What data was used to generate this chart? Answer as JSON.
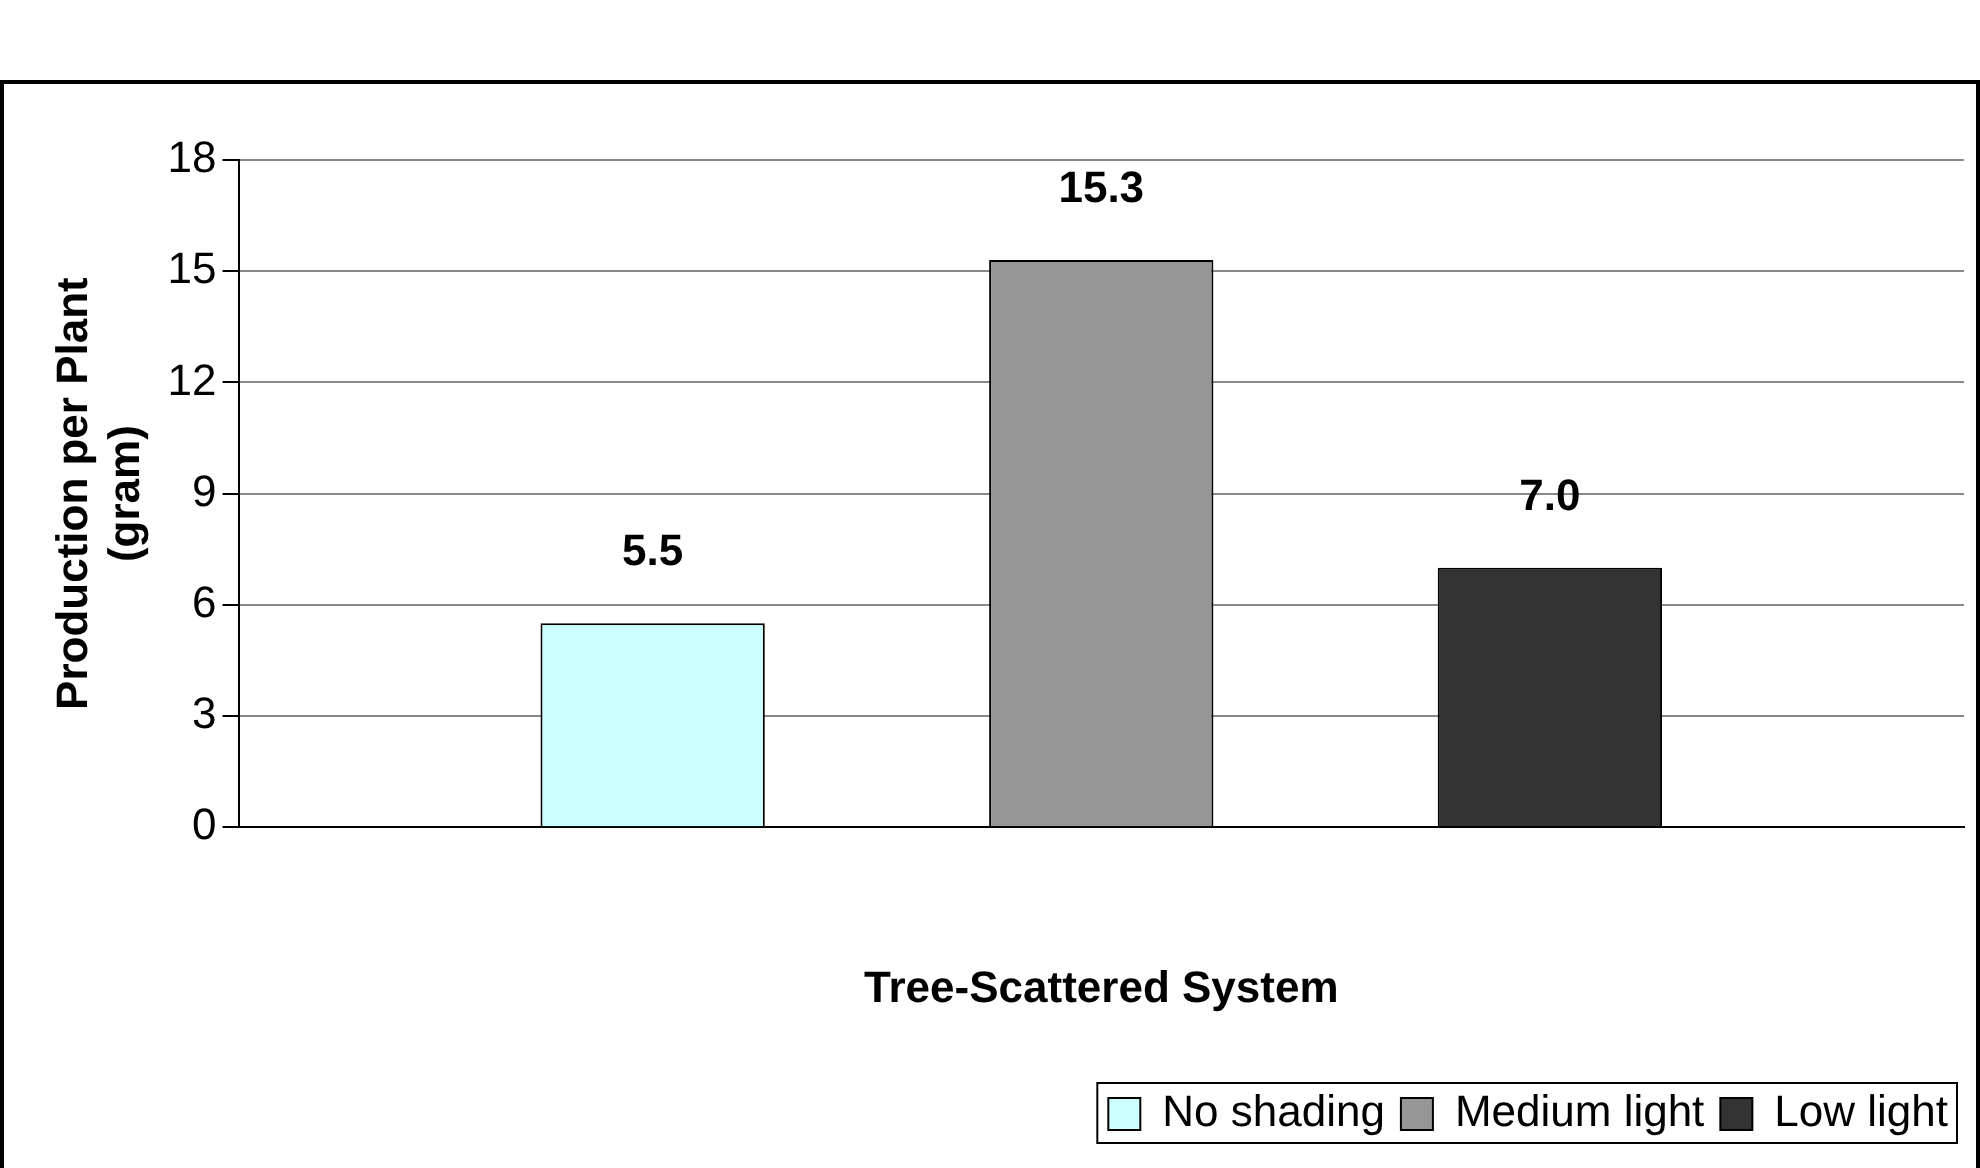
{
  "chart_data": {
    "type": "bar",
    "xlabel": "Tree-Scattered System",
    "ylabel": "Production per Plant\n(gram)",
    "categories": [
      null
    ],
    "series": [
      {
        "name": "No shading",
        "color": "#ccffff",
        "values": [
          5.5
        ],
        "value_labels": [
          "5.5"
        ]
      },
      {
        "name": "Medium light",
        "color": "#969696",
        "values": [
          15.3
        ],
        "value_labels": [
          "15.3"
        ]
      },
      {
        "name": "Low light",
        "color": "#333333",
        "values": [
          7.0
        ],
        "value_labels": [
          "7.0"
        ]
      }
    ],
    "ylim": [
      0,
      18
    ],
    "yticks": [
      0,
      3,
      6,
      9,
      12,
      15,
      18
    ],
    "grid": "y",
    "legend": "bottom right"
  }
}
